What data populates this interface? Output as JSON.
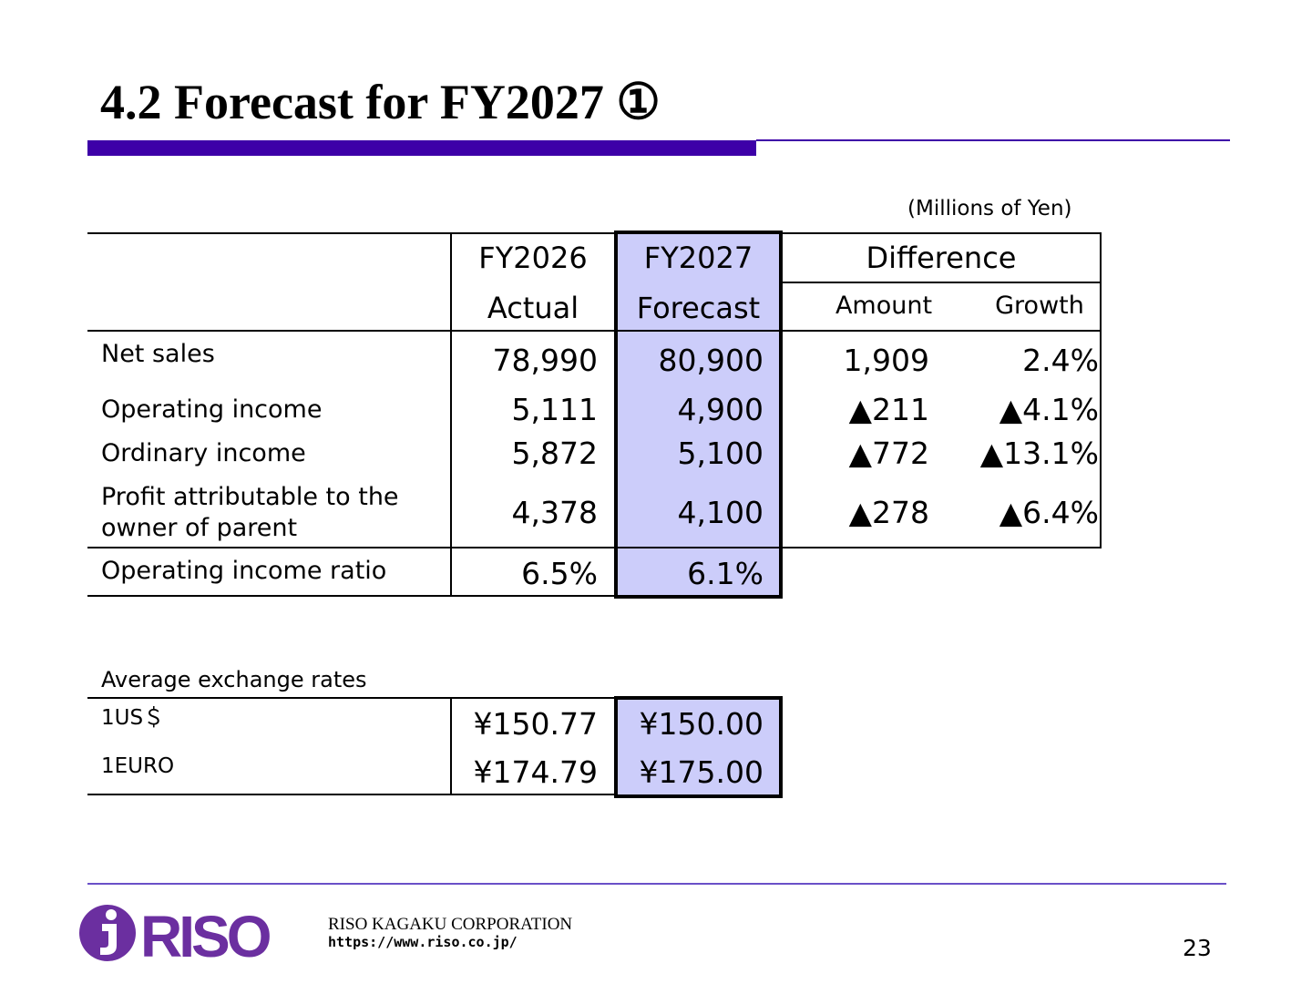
{
  "title": "4.2 Forecast for FY2027 ①",
  "unit_note": "(Millions of Yen)",
  "table": {
    "col1_line1": "FY2026",
    "col1_line2": "Actual",
    "col2_line1": "FY2027",
    "col2_line2": "Forecast",
    "diff_header": "Difference",
    "diff_amount": "Amount",
    "diff_growth": "Growth",
    "rows": [
      {
        "label": "Net sales",
        "actual": "78,990",
        "forecast": "80,900",
        "amount": "1,909",
        "growth": "2.4%"
      },
      {
        "label": "Operating income",
        "actual": "5,111",
        "forecast": "4,900",
        "amount": "▲211",
        "growth": "▲4.1%"
      },
      {
        "label": "Ordinary income",
        "actual": "5,872",
        "forecast": "5,100",
        "amount": "▲772",
        "growth": "▲13.1%"
      },
      {
        "label_line1": "Profit attributable to the",
        "label_line2": "owner of parent",
        "actual": "4,378",
        "forecast": "4,100",
        "amount": "▲278",
        "growth": "▲6.4%"
      }
    ],
    "ratio": {
      "label": "Operating income ratio",
      "actual": "6.5%",
      "forecast": "6.1%"
    }
  },
  "exchange": {
    "title": "Average exchange rates",
    "rows": [
      {
        "label": "1US＄",
        "actual": "¥150.77",
        "forecast": "¥150.00"
      },
      {
        "label": "1EURO",
        "actual": "¥174.79",
        "forecast": "¥175.00"
      }
    ]
  },
  "footer": {
    "company": "RISO KAGAKU CORPORATION",
    "url": "https://www.riso.co.jp/",
    "page": "23"
  },
  "logo": {
    "text": "RISO",
    "color": "#6b2fa0"
  },
  "colors": {
    "accent": "#3d00a8",
    "highlight": "#cccdfa"
  }
}
